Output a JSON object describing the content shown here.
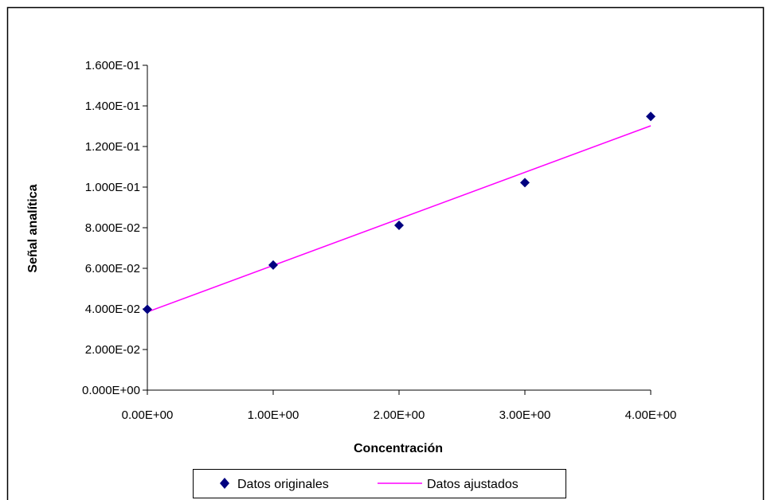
{
  "chart_data": {
    "type": "scatter",
    "title": "",
    "xlabel": "Concentración",
    "ylabel": "Señal analítica",
    "xlim": [
      0,
      4
    ],
    "ylim": [
      0,
      0.16
    ],
    "x_ticks": [
      0,
      1,
      2,
      3,
      4
    ],
    "x_tick_labels": [
      "0.00E+00",
      "1.00E+00",
      "2.00E+00",
      "3.00E+00",
      "4.00E+00"
    ],
    "y_ticks": [
      0,
      0.02,
      0.04,
      0.06,
      0.08,
      0.1,
      0.12,
      0.14,
      0.16
    ],
    "y_tick_labels": [
      "0.000E+00",
      "2.000E-02",
      "4.000E-02",
      "6.000E-02",
      "8.000E-02",
      "1.000E-01",
      "1.200E-01",
      "1.400E-01",
      "1.600E-01"
    ],
    "grid": false,
    "legend_position": "bottom",
    "series": [
      {
        "name": "Datos originales",
        "kind": "scatter",
        "marker": "diamond",
        "color": "#000080",
        "x": [
          0,
          1,
          2,
          3,
          4
        ],
        "y": [
          0.0398,
          0.0616,
          0.0812,
          0.1022,
          0.1348
        ]
      },
      {
        "name": "Datos ajustados",
        "kind": "line",
        "color": "#ff00ff",
        "x": [
          0,
          4
        ],
        "y": [
          0.0385,
          0.1302
        ]
      }
    ]
  }
}
